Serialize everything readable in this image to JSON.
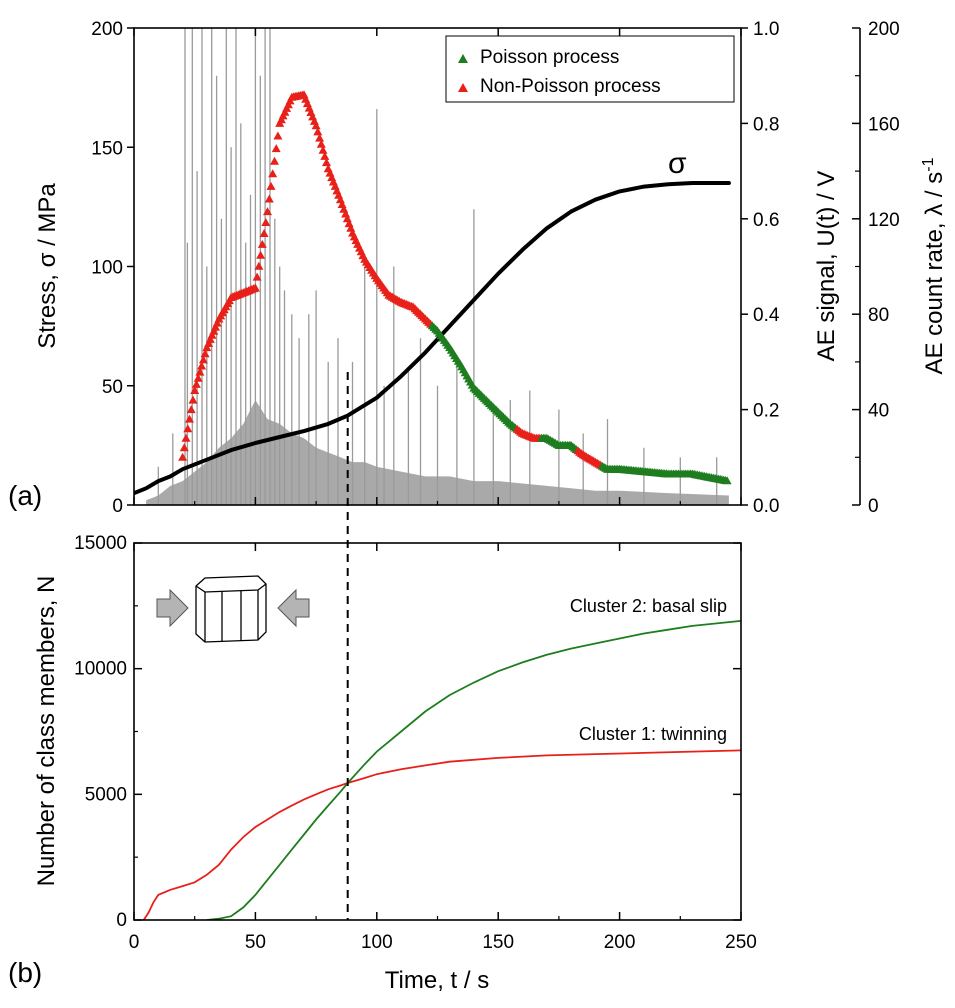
{
  "chart_data": [
    {
      "panel": "(a)",
      "type": "line",
      "xlim": [
        0,
        250
      ],
      "x_ticks": [
        "0",
        "50",
        "100",
        "150",
        "200",
        "250"
      ],
      "ylabel_left": "Stress, σ / MPa",
      "ylim_left": [
        0,
        200
      ],
      "y_ticks_left": [
        "0",
        "50",
        "100",
        "150",
        "200"
      ],
      "ylabel_right": "AE signal, U(t) / V",
      "ylim_right": [
        0,
        1.0
      ],
      "y_ticks_right": [
        "0.0",
        "0.2",
        "0.4",
        "0.6",
        "0.8",
        "1.0"
      ],
      "ylabel_right2": "AE count rate, λ / s",
      "ylabel_right2_superscript": "-1",
      "ylim_right2": [
        0,
        200
      ],
      "y_ticks_right2": [
        "0",
        "40",
        "80",
        "120",
        "160",
        "200"
      ],
      "legend": [
        "Poisson process",
        "Non-Poisson process"
      ],
      "legend_position": "top-right",
      "annotation_sigma": "σ",
      "colors": {
        "stress": "#000000",
        "poisson": "#1e7d1e",
        "non_poisson": "#e8201a",
        "ae_signal": "#8c8c8c"
      },
      "series": [
        {
          "name": "σ",
          "axis": "left",
          "x": [
            0,
            5,
            10,
            15,
            20,
            30,
            40,
            50,
            60,
            70,
            80,
            88,
            100,
            110,
            120,
            130,
            140,
            150,
            160,
            170,
            180,
            190,
            200,
            210,
            220,
            230,
            245
          ],
          "values": [
            5,
            7,
            10,
            12,
            15,
            19,
            23,
            26,
            28.5,
            31,
            34,
            37.5,
            45,
            54,
            64,
            75,
            86,
            97,
            107,
            116,
            123,
            128,
            131.5,
            133.5,
            134.5,
            135,
            135
          ]
        },
        {
          "name": "AE count rate",
          "axis": "right2",
          "x": [
            20,
            25,
            30,
            35,
            40,
            45,
            50,
            55,
            60,
            65,
            70,
            75,
            80,
            85,
            90,
            95,
            100,
            105,
            110,
            115,
            120,
            125,
            130,
            135,
            140,
            145,
            150,
            155,
            160,
            165,
            170,
            175,
            180,
            185,
            190,
            195,
            200,
            210,
            220,
            230,
            245
          ],
          "values": [
            20,
            48,
            66,
            78,
            87,
            89,
            91,
            123,
            160,
            171,
            172,
            159,
            141,
            128,
            114,
            103,
            95,
            88,
            85,
            83,
            78,
            73,
            66,
            58,
            49,
            44,
            39,
            34,
            30,
            28,
            28,
            25,
            25,
            21,
            18,
            15,
            15,
            14,
            13,
            13,
            10
          ],
          "process": [
            "non_poisson",
            "non_poisson",
            "non_poisson",
            "non_poisson",
            "non_poisson",
            "non_poisson",
            "non_poisson",
            "non_poisson",
            "non_poisson",
            "non_poisson",
            "non_poisson",
            "non_poisson",
            "non_poisson",
            "non_poisson",
            "non_poisson",
            "non_poisson",
            "non_poisson",
            "non_poisson",
            "non_poisson",
            "non_poisson",
            "non_poisson",
            "poisson",
            "poisson",
            "poisson",
            "poisson",
            "poisson",
            "poisson",
            "poisson",
            "non_poisson",
            "non_poisson",
            "poisson",
            "poisson",
            "poisson",
            "non_poisson",
            "non_poisson",
            "poisson",
            "poisson",
            "poisson",
            "poisson",
            "poisson",
            "poisson"
          ]
        },
        {
          "name": "AE signal",
          "axis": "right",
          "type": "bar",
          "background_envelope": {
            "x": [
              5,
              10,
              15,
              20,
              25,
              30,
              35,
              40,
              45,
              50,
              55,
              60,
              65,
              70,
              75,
              80,
              85,
              90,
              95,
              100,
              110,
              120,
              130,
              140,
              150,
              160,
              170,
              180,
              190,
              200,
              220,
              245
            ],
            "values": [
              0.01,
              0.02,
              0.04,
              0.05,
              0.07,
              0.09,
              0.12,
              0.14,
              0.17,
              0.22,
              0.18,
              0.17,
              0.15,
              0.14,
              0.12,
              0.11,
              0.1,
              0.09,
              0.09,
              0.08,
              0.07,
              0.06,
              0.06,
              0.05,
              0.05,
              0.045,
              0.04,
              0.035,
              0.03,
              0.03,
              0.025,
              0.02
            ]
          },
          "spikes": {
            "x": [
              10,
              16,
              21,
              22,
              24,
              26,
              28,
              30,
              32,
              34,
              36,
              38,
              40,
              42,
              44,
              46,
              48,
              50,
              52,
              54,
              56,
              58,
              60,
              62,
              65,
              68,
              72,
              75,
              80,
              84,
              90,
              95,
              100,
              103,
              107,
              113,
              118,
              125,
              133,
              140,
              148,
              155,
              163,
              175,
              185,
              195,
              210,
              225,
              240
            ],
            "values": [
              0.08,
              0.15,
              1.0,
              0.55,
              1.0,
              0.7,
              1.0,
              0.5,
              1.0,
              0.9,
              0.6,
              1.0,
              0.75,
              1.0,
              0.8,
              0.55,
              0.65,
              1.0,
              0.9,
              1.0,
              1.0,
              0.6,
              0.5,
              0.45,
              0.4,
              0.35,
              0.4,
              0.45,
              0.3,
              0.35,
              0.3,
              0.5,
              0.83,
              0.25,
              0.5,
              0.28,
              0.35,
              0.25,
              0.3,
              0.62,
              0.2,
              0.22,
              0.24,
              0.2,
              0.15,
              0.18,
              0.12,
              0.1,
              0.1
            ]
          }
        }
      ]
    },
    {
      "panel": "(b)",
      "type": "line",
      "xlabel": "Time, t / s",
      "ylabel": "Number of class members, N",
      "xlim": [
        0,
        250
      ],
      "ylim": [
        0,
        15000
      ],
      "x_ticks": [
        "0",
        "50",
        "100",
        "150",
        "200",
        "250"
      ],
      "y_ticks": [
        "0",
        "5000",
        "10000",
        "15000"
      ],
      "colors": {
        "cluster1": "#e8201a",
        "cluster2": "#1e7d1e"
      },
      "series": [
        {
          "name": "Cluster 1: twinning",
          "x": [
            4,
            6,
            8,
            10,
            15,
            20,
            25,
            30,
            35,
            40,
            45,
            50,
            55,
            60,
            65,
            70,
            75,
            80,
            85,
            88,
            95,
            100,
            110,
            120,
            130,
            150,
            170,
            190,
            210,
            230,
            250
          ],
          "values": [
            0,
            300,
            700,
            1000,
            1200,
            1350,
            1500,
            1800,
            2200,
            2800,
            3300,
            3700,
            4000,
            4300,
            4550,
            4800,
            5000,
            5200,
            5350,
            5450,
            5650,
            5800,
            6000,
            6150,
            6300,
            6450,
            6550,
            6600,
            6650,
            6700,
            6750
          ]
        },
        {
          "name": "Cluster 2: basal slip",
          "x": [
            30,
            35,
            40,
            45,
            50,
            55,
            60,
            65,
            70,
            75,
            80,
            85,
            88,
            95,
            100,
            110,
            120,
            130,
            140,
            150,
            160,
            170,
            180,
            190,
            200,
            210,
            220,
            230,
            240,
            250
          ],
          "values": [
            0,
            50,
            150,
            500,
            1000,
            1600,
            2200,
            2800,
            3400,
            4000,
            4550,
            5100,
            5450,
            6200,
            6700,
            7500,
            8300,
            8950,
            9450,
            9900,
            10250,
            10550,
            10800,
            11000,
            11200,
            11400,
            11550,
            11700,
            11800,
            11900
          ]
        }
      ]
    }
  ],
  "labels": {
    "panel_a": "(a)",
    "panel_b": "(b)"
  },
  "vertical_marker": {
    "time": 88,
    "style": "dashed"
  }
}
